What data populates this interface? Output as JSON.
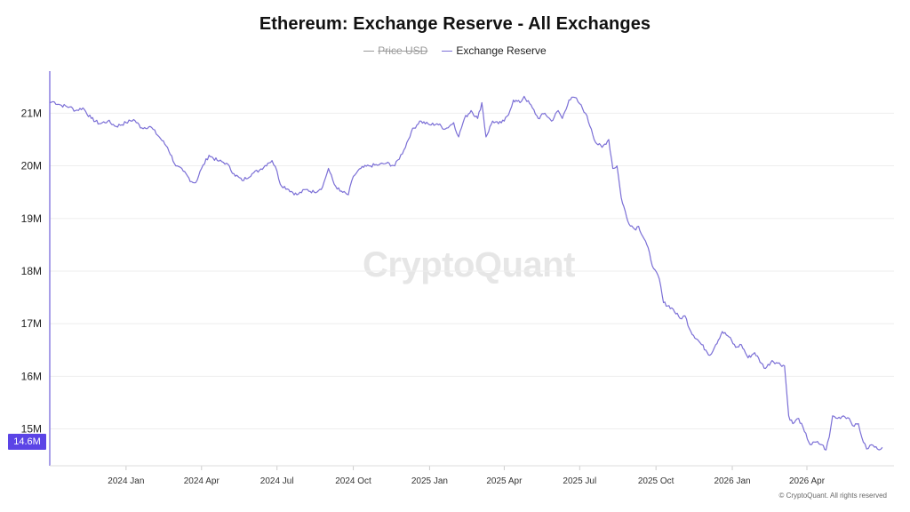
{
  "title": "Ethereum: Exchange Reserve - All Exchanges",
  "legend": [
    {
      "label": "Price USD",
      "color": "#9a9a9a",
      "visible": false
    },
    {
      "label": "Exchange Reserve",
      "color": "#7b6fd6",
      "visible": true
    }
  ],
  "watermark": "CryptoQuant",
  "copyright": "© CryptoQuant. All rights reserved",
  "current_value_label": "14.6M",
  "colors": {
    "series": "#7b6fd6",
    "axis": "#8b7fe0",
    "badge": "#5b44e6",
    "grid": "#eeeeee"
  },
  "chart_data": {
    "type": "line",
    "title": "Ethereum: Exchange Reserve - All Exchanges",
    "xlabel": "",
    "ylabel": "",
    "grid": true,
    "y_unit": "M",
    "ylim": [
      14.3,
      21.8
    ],
    "xlim": [
      "2023-10-01",
      "2026-07-15"
    ],
    "y_ticks": [
      15,
      16,
      17,
      18,
      19,
      20,
      21
    ],
    "y_tick_labels": [
      "15M",
      "16M",
      "17M",
      "18M",
      "19M",
      "20M",
      "21M"
    ],
    "x_ticks": [
      "2024-01-01",
      "2024-04-01",
      "2024-07-01",
      "2024-10-01",
      "2025-01-01",
      "2025-04-01",
      "2025-07-01",
      "2025-10-01",
      "2026-01-01",
      "2026-04-01"
    ],
    "x_tick_labels": [
      "2024 Jan",
      "2024 Apr",
      "2024 Jul",
      "2024 Oct",
      "2025 Jan",
      "2025 Apr",
      "2025 Jul",
      "2025 Oct",
      "2026 Jan",
      "2026 Apr"
    ],
    "series": [
      {
        "name": "Exchange Reserve",
        "points": [
          [
            "2023-10-01",
            21.2
          ],
          [
            "2023-10-05",
            21.22
          ],
          [
            "2023-10-15",
            21.15
          ],
          [
            "2023-10-25",
            21.12
          ],
          [
            "2023-11-01",
            21.05
          ],
          [
            "2023-11-10",
            21.1
          ],
          [
            "2023-11-20",
            20.9
          ],
          [
            "2023-11-30",
            20.8
          ],
          [
            "2023-12-10",
            20.85
          ],
          [
            "2023-12-20",
            20.75
          ],
          [
            "2024-01-01",
            20.82
          ],
          [
            "2024-01-10",
            20.88
          ],
          [
            "2024-01-20",
            20.72
          ],
          [
            "2024-01-30",
            20.75
          ],
          [
            "2024-02-10",
            20.55
          ],
          [
            "2024-02-20",
            20.35
          ],
          [
            "2024-03-01",
            20.0
          ],
          [
            "2024-03-10",
            19.9
          ],
          [
            "2024-03-20",
            19.7
          ],
          [
            "2024-03-25",
            19.68
          ],
          [
            "2024-04-01",
            19.95
          ],
          [
            "2024-04-10",
            20.2
          ],
          [
            "2024-04-20",
            20.1
          ],
          [
            "2024-05-01",
            20.05
          ],
          [
            "2024-05-10",
            19.85
          ],
          [
            "2024-05-20",
            19.72
          ],
          [
            "2024-06-01",
            19.85
          ],
          [
            "2024-06-10",
            19.92
          ],
          [
            "2024-06-20",
            20.05
          ],
          [
            "2024-06-25",
            20.1
          ],
          [
            "2024-07-01",
            19.9
          ],
          [
            "2024-07-05",
            19.65
          ],
          [
            "2024-07-15",
            19.55
          ],
          [
            "2024-07-25",
            19.45
          ],
          [
            "2024-08-05",
            19.55
          ],
          [
            "2024-08-15",
            19.5
          ],
          [
            "2024-08-25",
            19.6
          ],
          [
            "2024-09-01",
            19.95
          ],
          [
            "2024-09-08",
            19.65
          ],
          [
            "2024-09-15",
            19.52
          ],
          [
            "2024-09-25",
            19.45
          ],
          [
            "2024-10-01",
            19.8
          ],
          [
            "2024-10-10",
            19.95
          ],
          [
            "2024-10-20",
            20.0
          ],
          [
            "2024-11-01",
            20.02
          ],
          [
            "2024-11-10",
            20.05
          ],
          [
            "2024-11-20",
            20.0
          ],
          [
            "2024-12-01",
            20.3
          ],
          [
            "2024-12-10",
            20.65
          ],
          [
            "2024-12-20",
            20.85
          ],
          [
            "2025-01-01",
            20.78
          ],
          [
            "2025-01-10",
            20.8
          ],
          [
            "2025-01-20",
            20.7
          ],
          [
            "2025-01-30",
            20.82
          ],
          [
            "2025-02-05",
            20.55
          ],
          [
            "2025-02-12",
            20.9
          ],
          [
            "2025-02-20",
            21.05
          ],
          [
            "2025-02-28",
            20.9
          ],
          [
            "2025-03-05",
            21.2
          ],
          [
            "2025-03-10",
            20.55
          ],
          [
            "2025-03-18",
            20.85
          ],
          [
            "2025-03-25",
            20.8
          ],
          [
            "2025-04-01",
            20.85
          ],
          [
            "2025-04-08",
            21.05
          ],
          [
            "2025-04-12",
            21.25
          ],
          [
            "2025-04-20",
            21.2
          ],
          [
            "2025-04-25",
            21.32
          ],
          [
            "2025-05-05",
            21.1
          ],
          [
            "2025-05-12",
            20.9
          ],
          [
            "2025-05-20",
            21.0
          ],
          [
            "2025-05-28",
            20.85
          ],
          [
            "2025-06-05",
            21.05
          ],
          [
            "2025-06-10",
            20.9
          ],
          [
            "2025-06-18",
            21.25
          ],
          [
            "2025-06-25",
            21.3
          ],
          [
            "2025-07-01",
            21.18
          ],
          [
            "2025-07-08",
            21.0
          ],
          [
            "2025-07-15",
            20.7
          ],
          [
            "2025-07-20",
            20.45
          ],
          [
            "2025-07-28",
            20.35
          ],
          [
            "2025-08-05",
            20.5
          ],
          [
            "2025-08-10",
            19.95
          ],
          [
            "2025-08-15",
            20.0
          ],
          [
            "2025-08-20",
            19.4
          ],
          [
            "2025-08-28",
            18.95
          ],
          [
            "2025-09-05",
            18.8
          ],
          [
            "2025-09-10",
            18.85
          ],
          [
            "2025-09-20",
            18.5
          ],
          [
            "2025-09-28",
            18.05
          ],
          [
            "2025-10-05",
            17.85
          ],
          [
            "2025-10-10",
            17.4
          ],
          [
            "2025-10-20",
            17.3
          ],
          [
            "2025-10-30",
            17.1
          ],
          [
            "2025-11-05",
            17.15
          ],
          [
            "2025-11-12",
            16.85
          ],
          [
            "2025-11-20",
            16.7
          ],
          [
            "2025-11-30",
            16.5
          ],
          [
            "2025-12-05",
            16.4
          ],
          [
            "2025-12-12",
            16.6
          ],
          [
            "2025-12-20",
            16.85
          ],
          [
            "2025-12-28",
            16.75
          ],
          [
            "2026-01-05",
            16.55
          ],
          [
            "2026-01-12",
            16.6
          ],
          [
            "2026-01-20",
            16.35
          ],
          [
            "2026-01-28",
            16.45
          ],
          [
            "2026-02-05",
            16.25
          ],
          [
            "2026-02-10",
            16.15
          ],
          [
            "2026-02-18",
            16.3
          ],
          [
            "2026-02-25",
            16.25
          ],
          [
            "2026-03-05",
            16.2
          ],
          [
            "2026-03-10",
            15.25
          ],
          [
            "2026-03-15",
            15.1
          ],
          [
            "2026-03-22",
            15.2
          ],
          [
            "2026-03-29",
            14.95
          ],
          [
            "2026-04-05",
            14.7
          ],
          [
            "2026-04-12",
            14.75
          ],
          [
            "2026-04-19",
            14.7
          ],
          [
            "2026-04-24",
            14.6
          ],
          [
            "2026-04-28",
            14.85
          ],
          [
            "2026-05-02",
            15.25
          ],
          [
            "2026-05-08",
            15.2
          ],
          [
            "2026-05-15",
            15.25
          ],
          [
            "2026-05-22",
            15.2
          ],
          [
            "2026-05-28",
            15.05
          ],
          [
            "2026-06-02",
            15.1
          ],
          [
            "2026-06-08",
            14.75
          ],
          [
            "2026-06-12",
            14.62
          ],
          [
            "2026-06-18",
            14.7
          ],
          [
            "2026-06-25",
            14.62
          ],
          [
            "2026-07-01",
            14.65
          ]
        ]
      }
    ]
  }
}
